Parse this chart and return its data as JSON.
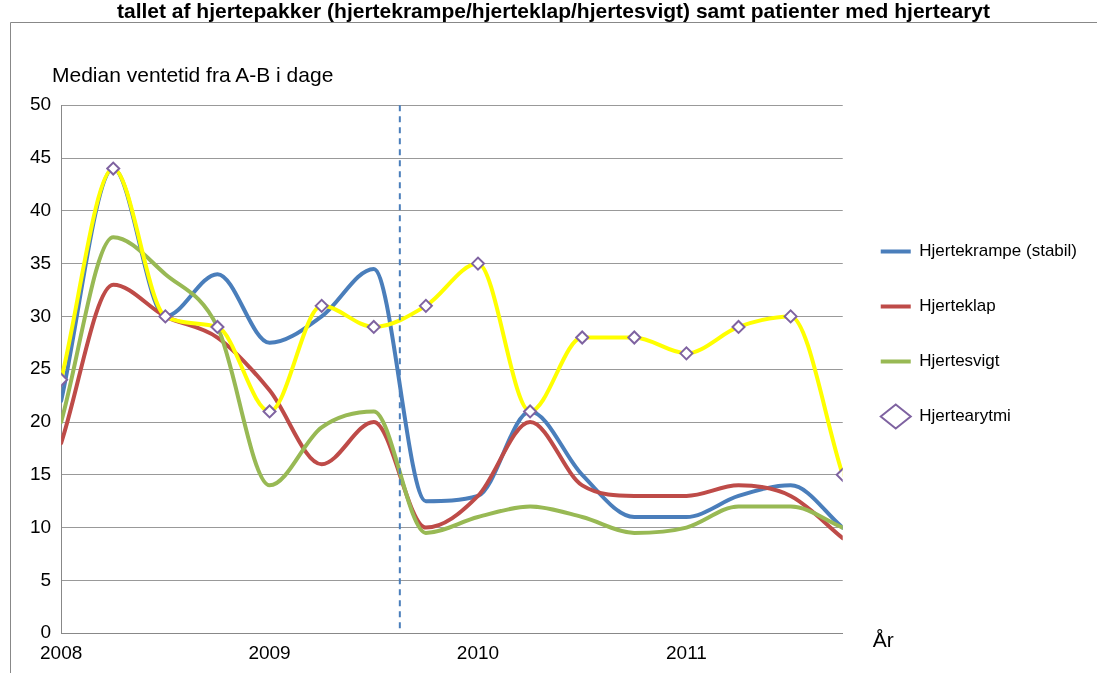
{
  "chart_data": {
    "type": "line",
    "title": "tallet af hjertepakker (hjertekrampe/hjerteklap/hjertesvigt) samt patienter med hjertearyt",
    "ylabel": "Median ventetid fra A-B i dage",
    "xlabel": "År",
    "x": [
      2008,
      2008.25,
      2008.5,
      2008.75,
      2009,
      2009.25,
      2009.5,
      2009.75,
      2010,
      2010.25,
      2010.5,
      2010.75,
      2011,
      2011.25,
      2011.5,
      2011.75
    ],
    "xlim": [
      2008,
      2011.75
    ],
    "xticks": [
      2008,
      2009,
      2010,
      2011
    ],
    "ylim": [
      0,
      50
    ],
    "yticks": [
      0,
      5,
      10,
      15,
      20,
      25,
      30,
      35,
      40,
      45,
      50
    ],
    "grid": "y",
    "legend": "right",
    "marker": "none",
    "line_style": "solid",
    "series": [
      {
        "name": "Hjertekrampe (stabil)",
        "color": "#4a7ebb",
        "values": [
          22,
          44,
          30,
          34,
          27.5,
          30,
          34.5,
          12.5,
          13,
          21,
          15,
          11,
          11,
          13,
          14,
          10
        ]
      },
      {
        "name": "Hjerteklap",
        "color": "#be4b48",
        "values": [
          18,
          33,
          30,
          28,
          23,
          16,
          20,
          10,
          13,
          20,
          14,
          13,
          13,
          14,
          13,
          9
        ]
      },
      {
        "name": "Hjertesvigt",
        "color": "#98b954",
        "values": [
          20,
          37.5,
          34,
          29,
          14,
          19.5,
          21,
          9.5,
          11,
          12,
          11,
          9.5,
          10,
          12,
          12,
          10
        ]
      },
      {
        "name": "Hjertearytmi",
        "color": "#ffff00",
        "marker": "diamond",
        "values": [
          24,
          44,
          30,
          29,
          21,
          31,
          29,
          31,
          35,
          21,
          28,
          28,
          26.5,
          29,
          30,
          15
        ]
      }
    ],
    "ref_lines": [
      {
        "axis": "x",
        "value": 2009.625,
        "color": "#4a7ebb",
        "line_style": "dashed"
      }
    ]
  }
}
